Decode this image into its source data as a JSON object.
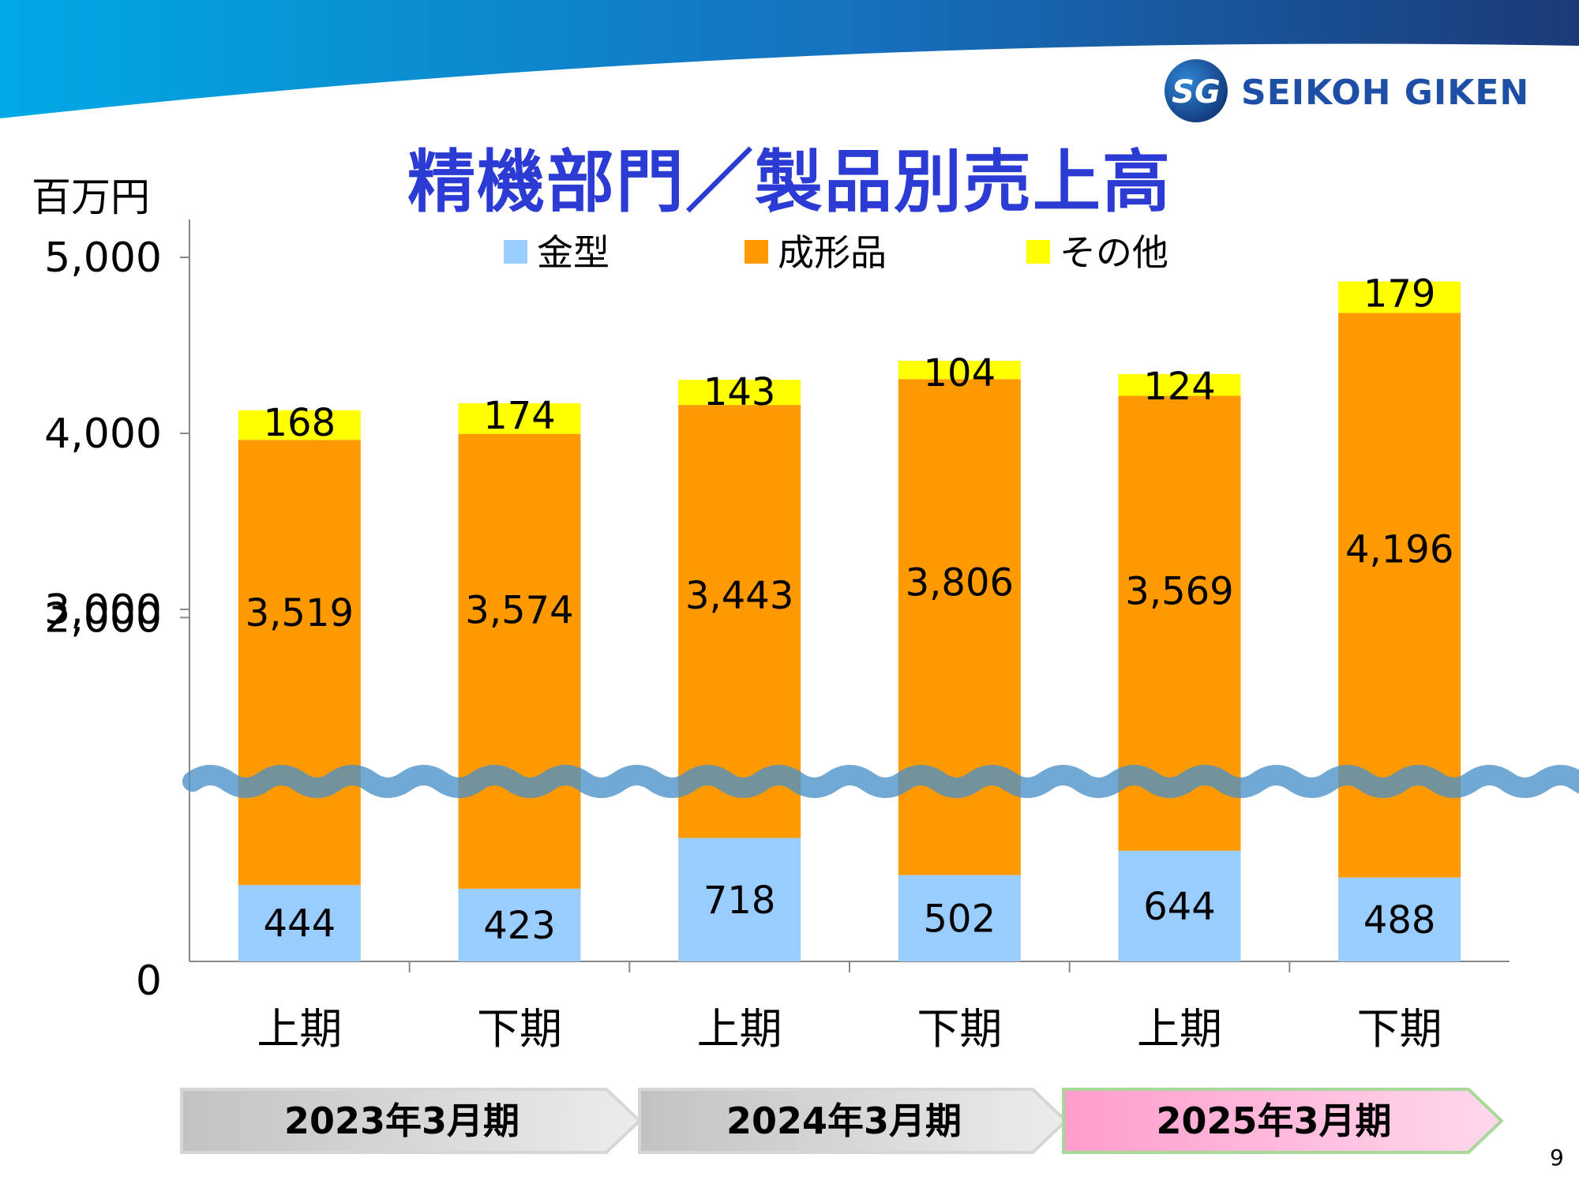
{
  "header": {
    "title": "精機部門／製品別売上高",
    "brand": "SEIKOH GIKEN",
    "logo_mark": "SG"
  },
  "page_number": "9",
  "colors": {
    "kanagata": "#99ccff",
    "seikeihin": "#ff9900",
    "other": "#ffff00",
    "title": "#2b3bd4",
    "axis_break_wave": "#4a90c8"
  },
  "chart_data": {
    "type": "bar",
    "stacked": true,
    "unit_label": "百万円",
    "y_ticks": [
      "0",
      "2,000",
      "3,000",
      "4,000",
      "5,000"
    ],
    "y_axis_break": true,
    "categories": [
      "上期",
      "下期",
      "上期",
      "下期",
      "上期",
      "下期"
    ],
    "fiscal_periods": [
      {
        "label": "2023年3月期",
        "highlight": false
      },
      {
        "label": "2024年3月期",
        "highlight": false
      },
      {
        "label": "2025年3月期",
        "highlight": true
      }
    ],
    "series": [
      {
        "name": "金型",
        "values": [
          444,
          423,
          718,
          502,
          644,
          488
        ]
      },
      {
        "name": "成形品",
        "values": [
          3519,
          3574,
          3443,
          3806,
          3569,
          4196
        ]
      },
      {
        "name": "その他",
        "values": [
          168,
          174,
          143,
          104,
          124,
          179
        ]
      }
    ],
    "data_labels": [
      [
        "444",
        "423",
        "718",
        "502",
        "644",
        "488"
      ],
      [
        "3,519",
        "3,574",
        "3,443",
        "3,806",
        "3,569",
        "4,196"
      ],
      [
        "168",
        "174",
        "143",
        "104",
        "124",
        "179"
      ]
    ],
    "legend_position": "top"
  }
}
